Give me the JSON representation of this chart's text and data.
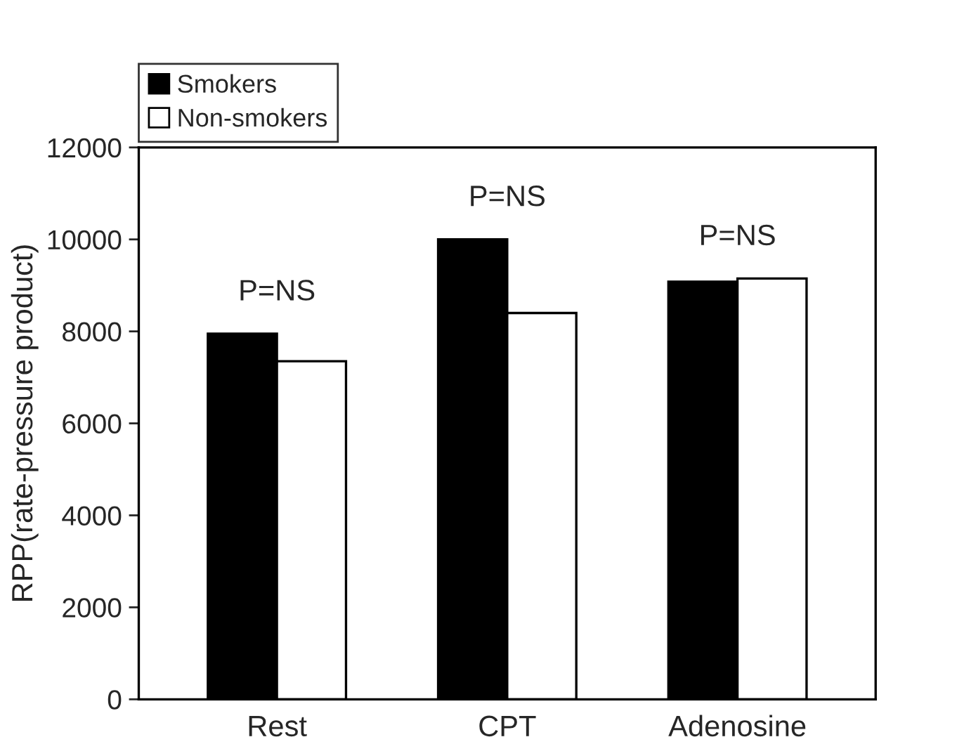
{
  "chart_data": {
    "type": "bar",
    "ylabel": "RPP(rate-pressure product)",
    "categories": [
      "Rest",
      "CPT",
      "Adenosine"
    ],
    "series": [
      {
        "name": "Smokers",
        "color": "#000000",
        "values": [
          7950,
          10000,
          9080
        ]
      },
      {
        "name": "Non-smokers",
        "color": "#ffffff",
        "values": [
          7350,
          8400,
          9150
        ]
      }
    ],
    "ylim": [
      0,
      12000
    ],
    "yticks": [
      0,
      2000,
      4000,
      6000,
      8000,
      10000,
      12000
    ],
    "grid": false,
    "legend": "top left",
    "annotations": [
      "P=NS",
      "P=NS",
      "P=NS"
    ]
  }
}
